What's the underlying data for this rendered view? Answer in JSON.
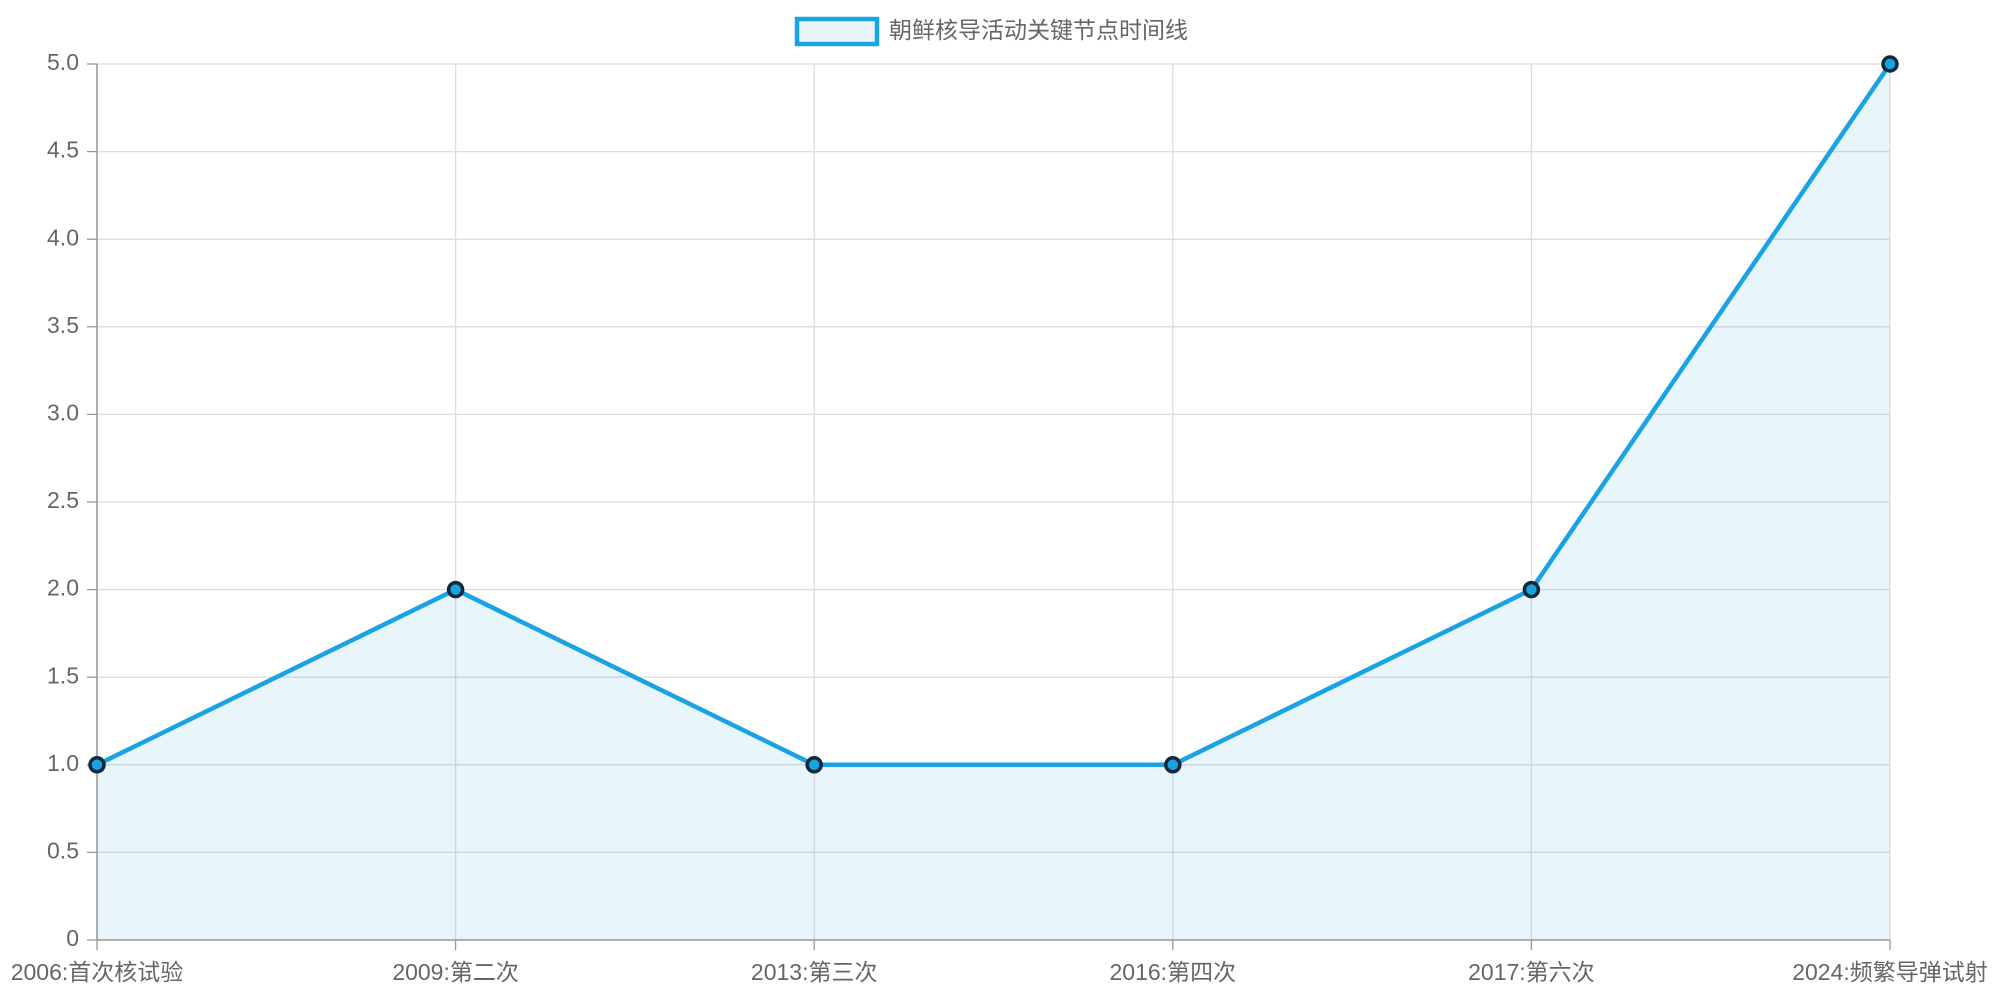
{
  "chart_data": {
    "type": "line",
    "categories": [
      "2006:首次核试验",
      "2009:第二次",
      "2013:第三次",
      "2016:第四次",
      "2017:第六次",
      "2024:频繁导弹试射"
    ],
    "series": [
      {
        "name": "朝鲜核导活动关键节点时间线",
        "color": "#1aa3e3",
        "values": [
          1,
          2,
          1,
          1,
          2,
          5
        ]
      }
    ],
    "ylim": [
      0,
      5
    ],
    "yticks": [
      0,
      0.5,
      {
        "value": 1,
        "label": "1.0"
      },
      1.5,
      {
        "value": 2,
        "label": "2.0"
      },
      2.5,
      {
        "value": 3,
        "label": "3.0"
      },
      3.5,
      {
        "value": 4,
        "label": "4.0"
      },
      4.5,
      {
        "value": 5,
        "label": "5.0"
      }
    ],
    "grid": true,
    "fill": true,
    "legend": "top"
  }
}
